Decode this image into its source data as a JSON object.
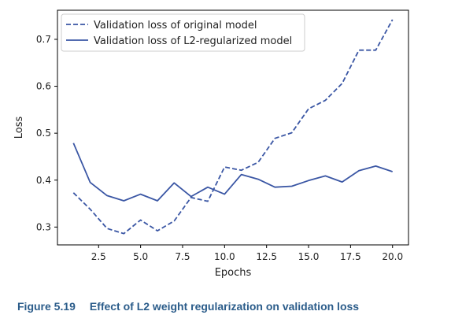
{
  "chart_data": {
    "type": "line",
    "title": "",
    "xlabel": "Epochs",
    "ylabel": "Loss",
    "xlim": [
      0.05,
      20.95
    ],
    "ylim": [
      0.262,
      0.762
    ],
    "x_ticks": [
      2.5,
      5.0,
      7.5,
      10.0,
      12.5,
      15.0,
      17.5,
      20.0
    ],
    "x_tick_labels": [
      "2.5",
      "5.0",
      "7.5",
      "10.0",
      "12.5",
      "15.0",
      "17.5",
      "20.0"
    ],
    "y_ticks": [
      0.3,
      0.4,
      0.5,
      0.6,
      0.7
    ],
    "y_tick_labels": [
      "0.3",
      "0.4",
      "0.5",
      "0.6",
      "0.7"
    ],
    "grid": false,
    "legend_position": "top-left",
    "series": [
      {
        "name": "Validation loss of original model",
        "style": "dashed",
        "color": "#3a56a4",
        "x": [
          1,
          2,
          3,
          4,
          5,
          6,
          7,
          8,
          9,
          10,
          11,
          12,
          13,
          14,
          15,
          16,
          17,
          18,
          19,
          20
        ],
        "values": [
          0.373,
          0.338,
          0.297,
          0.286,
          0.315,
          0.292,
          0.313,
          0.363,
          0.355,
          0.428,
          0.421,
          0.438,
          0.489,
          0.501,
          0.552,
          0.57,
          0.606,
          0.677,
          0.677,
          0.742
        ]
      },
      {
        "name": "Validation loss of L2-regularized model",
        "style": "solid",
        "color": "#3a56a4",
        "x": [
          1,
          2,
          3,
          4,
          5,
          6,
          7,
          8,
          9,
          10,
          11,
          12,
          13,
          14,
          15,
          16,
          17,
          18,
          19,
          20
        ],
        "values": [
          0.479,
          0.395,
          0.367,
          0.356,
          0.37,
          0.356,
          0.394,
          0.365,
          0.385,
          0.37,
          0.412,
          0.402,
          0.385,
          0.387,
          0.399,
          0.409,
          0.396,
          0.42,
          0.43,
          0.418
        ]
      }
    ]
  },
  "caption": {
    "figure_number": "Figure 5.19",
    "text": "Effect of L2 weight regularization on validation loss"
  }
}
